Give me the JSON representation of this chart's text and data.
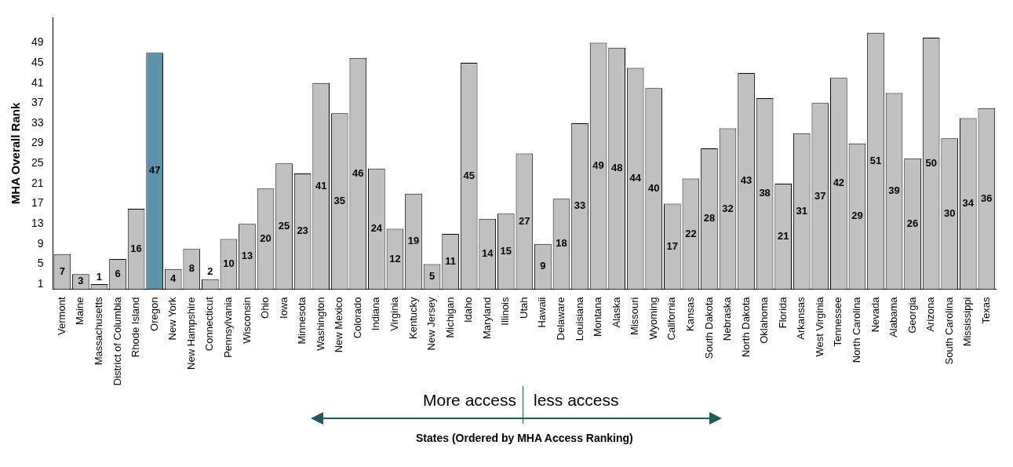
{
  "chart_data": {
    "type": "bar",
    "ylabel": "MHA Overall Rank",
    "xlabel": "States (Ordered by MHA Access Ranking)",
    "categories": [
      "Vermont",
      "Maine",
      "Massachusetts",
      "District of Columbia",
      "Rhode Island",
      "Oregon",
      "New York",
      "New Hampshire",
      "Connecticut",
      "Pennsylvania",
      "Wisconsin",
      "Ohio",
      "Iowa",
      "Minnesota",
      "Washington",
      "New Mexico",
      "Colorado",
      "Indiana",
      "Virginia",
      "Kentucky",
      "New Jersey",
      "Michigan",
      "Idaho",
      "Maryland",
      "Illinois",
      "Utah",
      "Hawaii",
      "Delaware",
      "Louisiana",
      "Montana",
      "Alaska",
      "Missouri",
      "Wyoming",
      "California",
      "Kansas",
      "South Dakota",
      "Nebraska",
      "North Dakota",
      "Oklahoma",
      "Florida",
      "Arkansas",
      "West Virginia",
      "Tennessee",
      "North Carolina",
      "Nevada",
      "Alabama",
      "Georgia",
      "Arizona",
      "South Carolina",
      "Mississippi",
      "Texas"
    ],
    "values": [
      7,
      3,
      1,
      6,
      16,
      47,
      4,
      8,
      2,
      10,
      13,
      20,
      25,
      23,
      41,
      35,
      46,
      24,
      12,
      19,
      5,
      11,
      45,
      14,
      15,
      27,
      9,
      18,
      33,
      49,
      48,
      44,
      40,
      17,
      22,
      28,
      32,
      43,
      38,
      21,
      31,
      37,
      42,
      29,
      51,
      39,
      26,
      50,
      30,
      34,
      36
    ],
    "colors": [
      "#c0c0c0",
      "#c0c0c0",
      "#c0c0c0",
      "#c0c0c0",
      "#c0c0c0",
      "#5b93ab",
      "#c0c0c0",
      "#c0c0c0",
      "#c0c0c0",
      "#c0c0c0",
      "#c0c0c0",
      "#c0c0c0",
      "#c0c0c0",
      "#c0c0c0",
      "#c0c0c0",
      "#c0c0c0",
      "#c0c0c0",
      "#c0c0c0",
      "#c0c0c0",
      "#c0c0c0",
      "#c0c0c0",
      "#c0c0c0",
      "#c0c0c0",
      "#c0c0c0",
      "#c0c0c0",
      "#c0c0c0",
      "#c0c0c0",
      "#c0c0c0",
      "#c0c0c0",
      "#c0c0c0",
      "#c0c0c0",
      "#c0c0c0",
      "#c0c0c0",
      "#c0c0c0",
      "#c0c0c0",
      "#c0c0c0",
      "#c0c0c0",
      "#c0c0c0",
      "#c0c0c0",
      "#c0c0c0",
      "#c0c0c0",
      "#c0c0c0",
      "#c0c0c0",
      "#c0c0c0",
      "#c0c0c0",
      "#c0c0c0",
      "#c0c0c0",
      "#c0c0c0",
      "#c0c0c0",
      "#c0c0c0",
      "#c0c0c0"
    ],
    "ylim": [
      0,
      54
    ],
    "yticks": [
      1,
      5,
      9,
      13,
      17,
      21,
      25,
      29,
      33,
      37,
      41,
      45,
      49
    ],
    "data_labels": true,
    "grid": false,
    "legend": false,
    "annotations": [
      "More access",
      "less access"
    ]
  }
}
